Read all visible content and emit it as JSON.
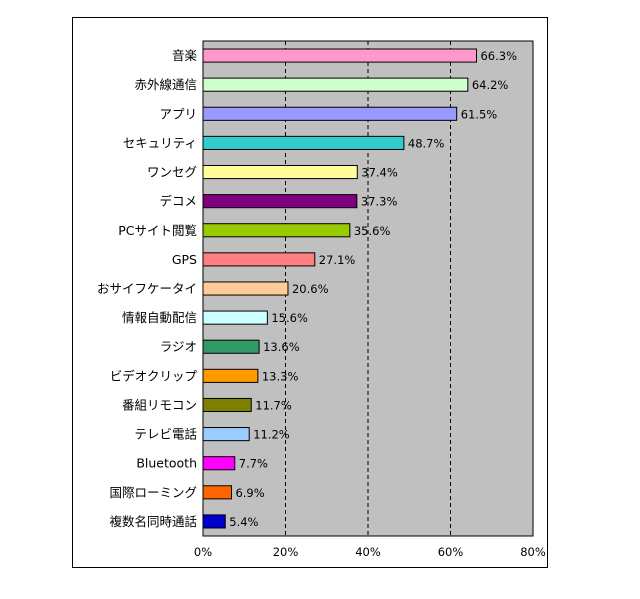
{
  "chart_data": {
    "type": "bar",
    "orientation": "horizontal",
    "categories": [
      "音楽",
      "赤外線通信",
      "アプリ",
      "セキュリティ",
      "ワンセグ",
      "デコメ",
      "PCサイト閲覧",
      "GPS",
      "おサイフケータイ",
      "情報自動配信",
      "ラジオ",
      "ビデオクリップ",
      "番組リモコン",
      "テレビ電話",
      "Bluetooth",
      "国際ローミング",
      "複数名同時通話"
    ],
    "values": [
      66.3,
      64.2,
      61.5,
      48.7,
      37.4,
      37.3,
      35.6,
      27.1,
      20.6,
      15.6,
      13.6,
      13.3,
      11.7,
      11.2,
      7.7,
      6.9,
      5.4
    ],
    "value_labels": [
      "66.3%",
      "64.2%",
      "61.5%",
      "48.7%",
      "37.4%",
      "37.3%",
      "35.6%",
      "27.1%",
      "20.6%",
      "15.6%",
      "13.6%",
      "13.3%",
      "11.7%",
      "11.2%",
      "7.7%",
      "6.9%",
      "5.4%"
    ],
    "colors": [
      "#FF99CC",
      "#CCFFCC",
      "#9999FF",
      "#33CCCC",
      "#FFFF99",
      "#800080",
      "#99CC00",
      "#FF8080",
      "#FFCC99",
      "#CCFFFF",
      "#339966",
      "#FF9900",
      "#808000",
      "#99CCFF",
      "#FF00FF",
      "#FF6600",
      "#0000CC"
    ],
    "xlim": [
      0,
      80
    ],
    "x_ticks": [
      0,
      20,
      40,
      60,
      80
    ],
    "x_tick_labels": [
      "0%",
      "20%",
      "40%",
      "60%",
      "80%"
    ],
    "plot_background": "#C0C0C0",
    "grid": "dashed-vertical"
  }
}
